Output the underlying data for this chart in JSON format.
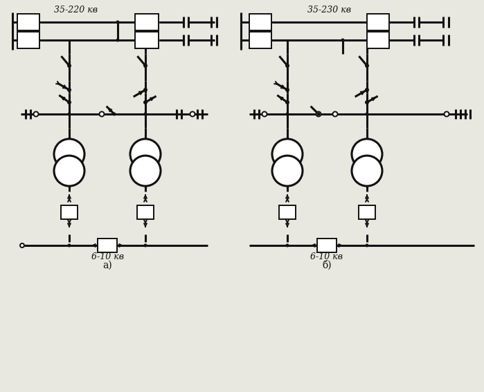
{
  "title_a": "35-220 кв",
  "title_b": "35-230 кв",
  "label_a_low": "6-10 кв",
  "label_b_low": "6-10 кв",
  "sub_a": "а)",
  "sub_b": "б)",
  "bg_color": "#e8e8e0",
  "line_color": "#111111",
  "lw_thin": 1.4,
  "lw_thick": 2.2
}
